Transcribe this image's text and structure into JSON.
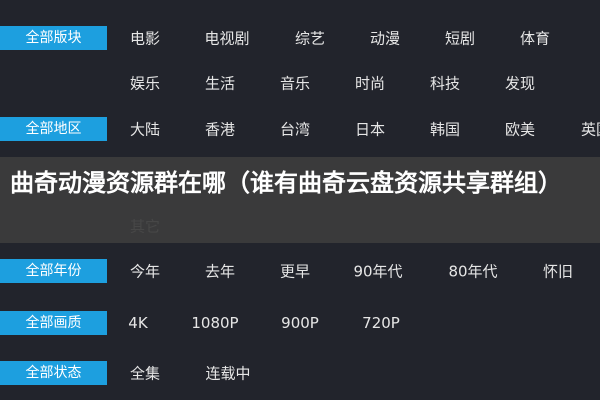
{
  "filters": [
    {
      "label": "全部版块",
      "items": [
        "电影",
        "电视剧",
        "综艺",
        "动漫",
        "短剧",
        "体育"
      ]
    },
    {
      "label": null,
      "items": [
        "娱乐",
        "生活",
        "音乐",
        "时尚",
        "科技",
        "发现"
      ]
    },
    {
      "label": "全部地区",
      "items": [
        "大陆",
        "香港",
        "台湾",
        "日本",
        "韩国",
        "欧美",
        "英国"
      ]
    },
    {
      "label": null,
      "items": [
        "其它"
      ]
    },
    {
      "label": "全部年份",
      "items": [
        "今年",
        "去年",
        "更早",
        "90年代",
        "80年代",
        "怀旧"
      ]
    },
    {
      "label": "全部画质",
      "items": [
        "4K",
        "1080P",
        "900P",
        "720P"
      ]
    },
    {
      "label": "全部状态",
      "items": [
        "全集",
        "连载中"
      ]
    }
  ],
  "overlay": {
    "title": "曲奇动漫资源群在哪（谁有曲奇云盘资源共享群组）"
  }
}
